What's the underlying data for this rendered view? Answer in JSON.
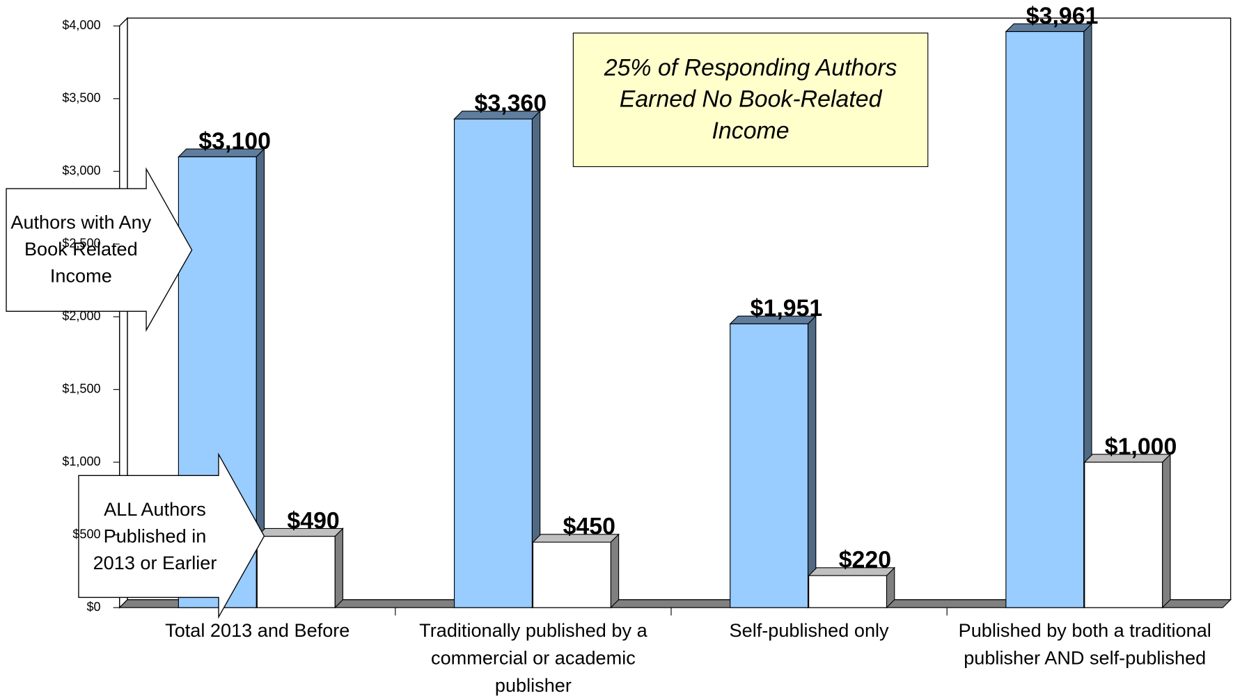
{
  "chart_data": {
    "type": "bar",
    "annotation": "25% of Responding Authors Earned No Book-Related Income",
    "categories": [
      "Total 2013 and Before",
      "Traditionally published by a commercial or academic publisher",
      "Self-published only",
      "Published by both a traditional publisher AND self-published"
    ],
    "series": [
      {
        "name": "Authors with Any Book Related Income",
        "color": "#99ccff",
        "values": [
          3100,
          3360,
          1951,
          3961
        ],
        "value_labels": [
          "$3,100",
          "$3,360",
          "$1,951",
          "$3,961"
        ]
      },
      {
        "name": "ALL Authors Published in 2013 or Earlier",
        "color": "#ffffff",
        "values": [
          490,
          450,
          220,
          1000
        ],
        "value_labels": [
          "$490",
          "$450",
          "$220",
          "$1,000"
        ]
      }
    ],
    "ylim": [
      0,
      4000
    ],
    "yticks": [
      {
        "value": 0,
        "label": "$0"
      },
      {
        "value": 500,
        "label": "$500"
      },
      {
        "value": 1000,
        "label": "$1,000"
      },
      {
        "value": 1500,
        "label": "$1,500"
      },
      {
        "value": 2000,
        "label": "$2,000"
      },
      {
        "value": 2500,
        "label": "$2,500"
      },
      {
        "value": 3000,
        "label": "$3,000"
      },
      {
        "value": 3500,
        "label": "$3,500"
      },
      {
        "value": 4000,
        "label": "$4,000"
      }
    ]
  }
}
